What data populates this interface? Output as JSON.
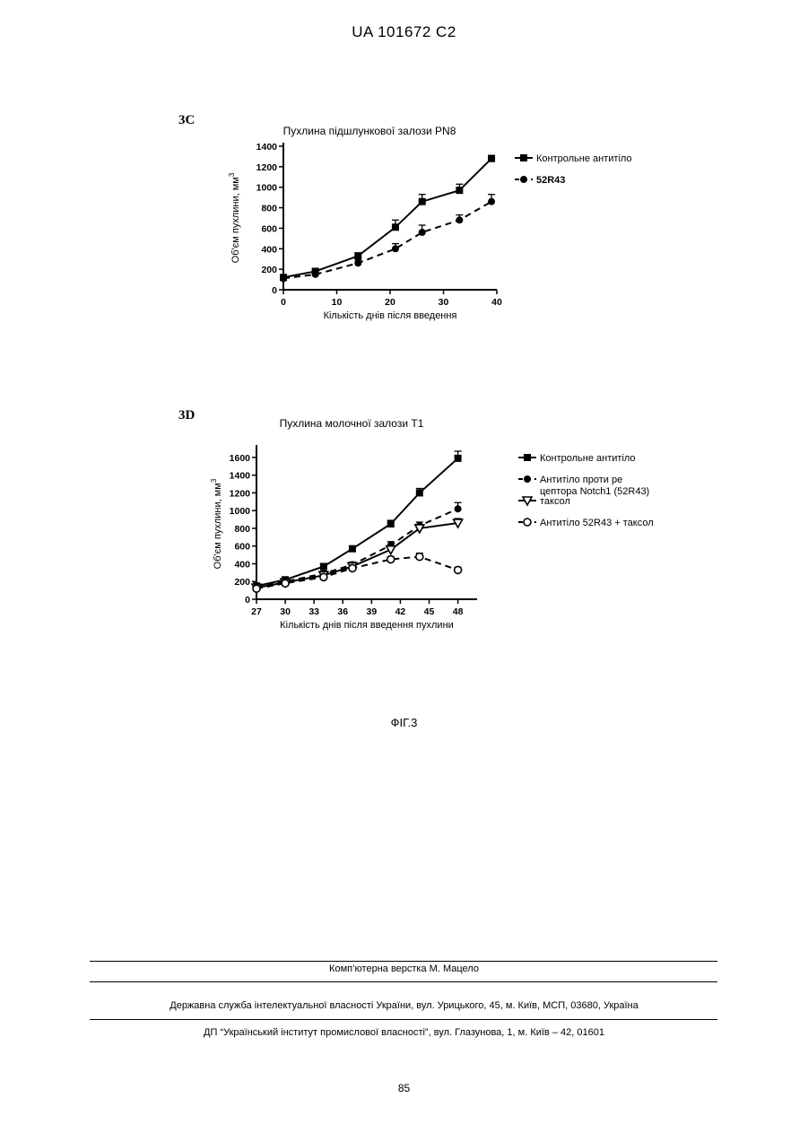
{
  "header": {
    "patent_number": "UA   101672   C2"
  },
  "figure_caption": "ФІГ.3",
  "footer": {
    "line1": "Комп’ютерна верстка М. Мацело",
    "line2": "Державна служба інтелектуальної власності України, вул. Урицького, 45, м. Київ, МСП, 03680, Україна",
    "line3": "ДП “Український інститут промислової власності”, вул. Глазунова, 1, м. Київ – 42, 01601",
    "page_number": "85"
  },
  "chart_data": [
    {
      "panel": "3C",
      "type": "line",
      "title": "Пухлина підшлункової залози PN8",
      "xlabel": "Кількість днів після введення",
      "ylabel": "Об'єм пухлини, мм",
      "ylabel_sup": "3",
      "xlim": [
        0,
        40
      ],
      "ylim": [
        0,
        1400
      ],
      "x_ticks": [
        0,
        10,
        20,
        30,
        40
      ],
      "y_ticks": [
        0,
        200,
        400,
        600,
        800,
        1000,
        1200,
        1400
      ],
      "legend_position": "right",
      "series": [
        {
          "name": "Контрольне антитіло",
          "marker": "square",
          "line": "solid",
          "legend_bold": false,
          "x": [
            0,
            6,
            14,
            21,
            26,
            33,
            39
          ],
          "y": [
            120,
            180,
            330,
            610,
            860,
            970,
            1280
          ],
          "err": [
            20,
            20,
            30,
            70,
            70,
            60,
            30
          ]
        },
        {
          "name": "52R43",
          "marker": "circle",
          "line": "dashed",
          "legend_bold": true,
          "x": [
            0,
            6,
            14,
            21,
            26,
            33,
            39
          ],
          "y": [
            110,
            150,
            260,
            400,
            560,
            680,
            860
          ],
          "err": [
            15,
            20,
            30,
            50,
            70,
            50,
            70
          ]
        }
      ]
    },
    {
      "panel": "3D",
      "type": "line",
      "title": "Пухлина молочної залози Т1",
      "xlabel": "Кількість днів після введення пухлини",
      "ylabel": "Об'єм пухлини, мм",
      "ylabel_sup": "3",
      "xlim": [
        27,
        50
      ],
      "ylim": [
        0,
        1700
      ],
      "x_ticks": [
        27,
        30,
        33,
        36,
        39,
        42,
        45,
        48
      ],
      "y_ticks": [
        0,
        200,
        400,
        600,
        800,
        1000,
        1200,
        1400,
        1600
      ],
      "legend_position": "right",
      "series": [
        {
          "name": "Контрольне антитіло",
          "marker": "square",
          "line": "solid",
          "x": [
            27,
            30,
            34,
            37,
            41,
            44,
            48
          ],
          "y": [
            150,
            220,
            370,
            570,
            850,
            1200,
            1590
          ],
          "err": [
            20,
            20,
            30,
            30,
            40,
            50,
            80
          ]
        },
        {
          "name": "Антитіло проти рецептора Notch1 (52R43)",
          "marker": "circle",
          "line": "dashed",
          "x": [
            27,
            30,
            34,
            37,
            41,
            44,
            48
          ],
          "y": [
            140,
            200,
            290,
            390,
            610,
            830,
            1020
          ],
          "err": [
            20,
            20,
            30,
            30,
            40,
            40,
            70
          ]
        },
        {
          "name": "таксол",
          "marker": "triangle-down",
          "line": "solid",
          "x": [
            27,
            30,
            34,
            37,
            41,
            44,
            48
          ],
          "y": [
            130,
            190,
            270,
            370,
            560,
            800,
            860
          ],
          "err": [
            20,
            20,
            30,
            30,
            40,
            40,
            50
          ]
        },
        {
          "name": "Антитіло 52R43 + таксол",
          "marker": "circle-open",
          "line": "dashed",
          "x": [
            27,
            30,
            34,
            37,
            41,
            44,
            48
          ],
          "y": [
            120,
            180,
            250,
            350,
            450,
            480,
            330
          ],
          "err": [
            20,
            20,
            20,
            30,
            30,
            40,
            30
          ]
        }
      ]
    }
  ]
}
